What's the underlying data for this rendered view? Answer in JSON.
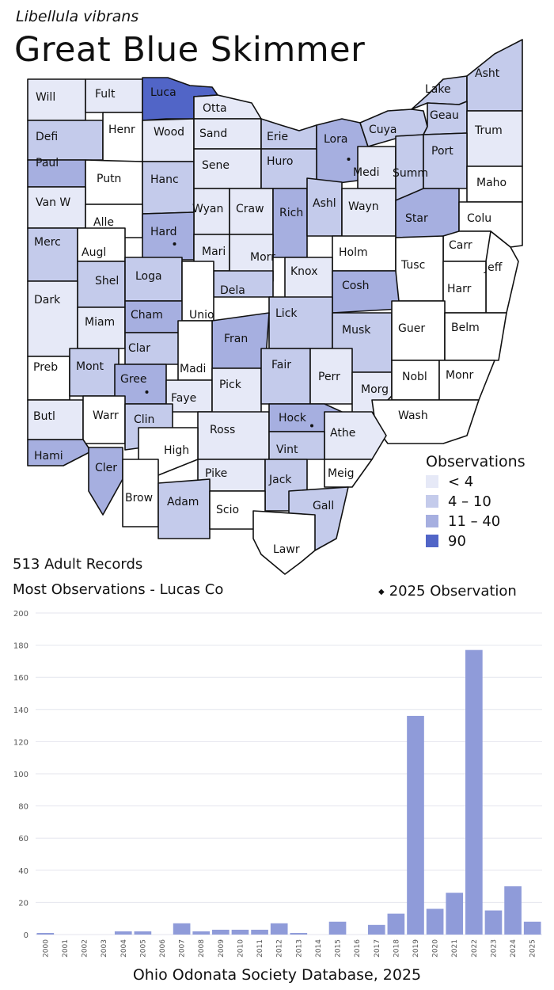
{
  "map": {
    "species": "Libellula vibrans",
    "common_name": "Great Blue Skimmer",
    "colors": {
      "none": "#ffffff",
      "lt4": "#e6e9f7",
      "4to10": "#c4cbeb",
      "11to40": "#a6afe0",
      "90": "#5165c7"
    },
    "counties": [
      {
        "id": "Will",
        "label": "Will",
        "cls": "lt4"
      },
      {
        "id": "Fult",
        "label": "Fult",
        "cls": "lt4"
      },
      {
        "id": "Luca",
        "label": "Luca",
        "cls": "90"
      },
      {
        "id": "Otta",
        "label": "Otta",
        "cls": "lt4"
      },
      {
        "id": "Defi",
        "label": "Defi",
        "cls": "4to10"
      },
      {
        "id": "Henr",
        "label": "Henr",
        "cls": "none"
      },
      {
        "id": "Wood",
        "label": "Wood",
        "cls": "lt4"
      },
      {
        "id": "Sand",
        "label": "Sand",
        "cls": "lt4"
      },
      {
        "id": "Erie",
        "label": "Erie",
        "cls": "4to10"
      },
      {
        "id": "Lora",
        "label": "Lora",
        "cls": "11to40",
        "dot": true
      },
      {
        "id": "Cuya",
        "label": "Cuya",
        "cls": "4to10"
      },
      {
        "id": "Lake",
        "label": "Lake",
        "cls": "4to10"
      },
      {
        "id": "Asht",
        "label": "Asht",
        "cls": "4to10"
      },
      {
        "id": "Geau",
        "label": "Geau",
        "cls": "4to10"
      },
      {
        "id": "Trum",
        "label": "Trum",
        "cls": "lt4"
      },
      {
        "id": "Paul",
        "label": "Paul",
        "cls": "11to40"
      },
      {
        "id": "Putn",
        "label": "Putn",
        "cls": "none"
      },
      {
        "id": "Hanc",
        "label": "Hanc",
        "cls": "4to10"
      },
      {
        "id": "Sene",
        "label": "Sene",
        "cls": "lt4"
      },
      {
        "id": "Huro",
        "label": "Huro",
        "cls": "4to10"
      },
      {
        "id": "Medi",
        "label": "Medi",
        "cls": "lt4"
      },
      {
        "id": "Summ",
        "label": "Summ",
        "cls": "4to10"
      },
      {
        "id": "Port",
        "label": "Port",
        "cls": "4to10"
      },
      {
        "id": "Maho",
        "label": "Maho",
        "cls": "none"
      },
      {
        "id": "VanW",
        "label": "Van W",
        "cls": "lt4"
      },
      {
        "id": "Alle",
        "label": "Alle",
        "cls": "none"
      },
      {
        "id": "Wyan",
        "label": "Wyan",
        "cls": "lt4"
      },
      {
        "id": "Craw",
        "label": "Craw",
        "cls": "lt4"
      },
      {
        "id": "Rich",
        "label": "Rich",
        "cls": "11to40"
      },
      {
        "id": "Ashl",
        "label": "Ashl",
        "cls": "4to10"
      },
      {
        "id": "Wayn",
        "label": "Wayn",
        "cls": "lt4"
      },
      {
        "id": "Star",
        "label": "Star",
        "cls": "11to40"
      },
      {
        "id": "Colu",
        "label": "Colu",
        "cls": "none"
      },
      {
        "id": "Merc",
        "label": "Merc",
        "cls": "4to10"
      },
      {
        "id": "Augl",
        "label": "Augl",
        "cls": "none"
      },
      {
        "id": "Hard",
        "label": "Hard",
        "cls": "11to40",
        "dot": true
      },
      {
        "id": "Mari",
        "label": "Mari",
        "cls": "lt4"
      },
      {
        "id": "Morr",
        "label": "Morr",
        "cls": "lt4"
      },
      {
        "id": "Holm",
        "label": "Holm",
        "cls": "none"
      },
      {
        "id": "Carr",
        "label": "Carr",
        "cls": "none"
      },
      {
        "id": "Tusc",
        "label": "Tusc",
        "cls": "none"
      },
      {
        "id": "Jeff",
        "label": "Jeff",
        "cls": "none"
      },
      {
        "id": "Shel",
        "label": "Shel",
        "cls": "4to10"
      },
      {
        "id": "Loga",
        "label": "Loga",
        "cls": "4to10"
      },
      {
        "id": "Knox",
        "label": "Knox",
        "cls": "lt4"
      },
      {
        "id": "Dela",
        "label": "Dela",
        "cls": "4to10"
      },
      {
        "id": "Cosh",
        "label": "Cosh",
        "cls": "11to40"
      },
      {
        "id": "Harr",
        "label": "Harr",
        "cls": "none"
      },
      {
        "id": "Dark",
        "label": "Dark",
        "cls": "lt4"
      },
      {
        "id": "Miam",
        "label": "Miam",
        "cls": "lt4"
      },
      {
        "id": "Cham",
        "label": "Cham",
        "cls": "11to40"
      },
      {
        "id": "Unio",
        "label": "Unio",
        "cls": "none"
      },
      {
        "id": "Lick",
        "label": "Lick",
        "cls": "4to10"
      },
      {
        "id": "Musk",
        "label": "Musk",
        "cls": "4to10"
      },
      {
        "id": "Guer",
        "label": "Guer",
        "cls": "none"
      },
      {
        "id": "Belm",
        "label": "Belm",
        "cls": "none"
      },
      {
        "id": "Clar",
        "label": "Clar",
        "cls": "4to10"
      },
      {
        "id": "Fran",
        "label": "Fran",
        "cls": "11to40"
      },
      {
        "id": "Madi",
        "label": "Madi",
        "cls": "none"
      },
      {
        "id": "Preb",
        "label": "Preb",
        "cls": "none"
      },
      {
        "id": "Mont",
        "label": "Mont",
        "cls": "4to10"
      },
      {
        "id": "Gree",
        "label": "Gree",
        "cls": "11to40",
        "dot": true
      },
      {
        "id": "Faye",
        "label": "Faye",
        "cls": "lt4"
      },
      {
        "id": "Pick",
        "label": "Pick",
        "cls": "lt4"
      },
      {
        "id": "Fair",
        "label": "Fair",
        "cls": "4to10"
      },
      {
        "id": "Perr",
        "label": "Perr",
        "cls": "lt4"
      },
      {
        "id": "Morg",
        "label": "Morg",
        "cls": "lt4"
      },
      {
        "id": "Nobl",
        "label": "Nobl",
        "cls": "none"
      },
      {
        "id": "Monr",
        "label": "Monr",
        "cls": "none"
      },
      {
        "id": "Wash",
        "label": "Wash",
        "cls": "none"
      },
      {
        "id": "Butl",
        "label": "Butl",
        "cls": "lt4"
      },
      {
        "id": "Warr",
        "label": "Warr",
        "cls": "none"
      },
      {
        "id": "Clin",
        "label": "Clin",
        "cls": "4to10"
      },
      {
        "id": "Ross",
        "label": "Ross",
        "cls": "lt4"
      },
      {
        "id": "Hock",
        "label": "Hock",
        "cls": "11to40",
        "dot": true
      },
      {
        "id": "Athe",
        "label": "Athe",
        "cls": "lt4"
      },
      {
        "id": "Hami",
        "label": "Hami",
        "cls": "11to40"
      },
      {
        "id": "Cler",
        "label": "Cler",
        "cls": "11to40"
      },
      {
        "id": "High",
        "label": "High",
        "cls": "none"
      },
      {
        "id": "Vint",
        "label": "Vint",
        "cls": "4to10"
      },
      {
        "id": "Meig",
        "label": "Meig",
        "cls": "none"
      },
      {
        "id": "Pike",
        "label": "Pike",
        "cls": "lt4"
      },
      {
        "id": "Jack",
        "label": "Jack",
        "cls": "4to10"
      },
      {
        "id": "Brow",
        "label": "Brow",
        "cls": "none"
      },
      {
        "id": "Adam",
        "label": "Adam",
        "cls": "4to10"
      },
      {
        "id": "Scio",
        "label": "Scio",
        "cls": "none"
      },
      {
        "id": "Gall",
        "label": "Gall",
        "cls": "4to10"
      },
      {
        "id": "Lawr",
        "label": "Lawr",
        "cls": "none"
      }
    ]
  },
  "legend": {
    "title": "Observations",
    "items": [
      {
        "label": "< 4",
        "color": "#e6e9f7"
      },
      {
        "label": "4 – 10",
        "color": "#c4cbeb"
      },
      {
        "label": "11 – 40",
        "color": "#a6afe0"
      },
      {
        "label": "90",
        "color": "#5165c7"
      }
    ]
  },
  "summary": {
    "records": "513 Adult Records",
    "most": "Most Observations - Lucas Co",
    "obs_2025": "2025  Observation"
  },
  "chart_data": {
    "type": "bar",
    "title": "",
    "xlabel": "",
    "ylabel": "",
    "ylim": [
      0,
      200
    ],
    "yticks": [
      0,
      20,
      40,
      60,
      80,
      100,
      120,
      140,
      160,
      180,
      200
    ],
    "bar_color": "#8f9bd9",
    "categories": [
      "2000",
      "2001",
      "2002",
      "2003",
      "2004",
      "2005",
      "2006",
      "2007",
      "2008",
      "2009",
      "2010",
      "2011",
      "2012",
      "2013",
      "2014",
      "2015",
      "2016",
      "2017",
      "2018",
      "2019",
      "2020",
      "2021",
      "2022",
      "2023",
      "2024",
      "2025"
    ],
    "values": [
      1,
      0,
      0,
      0,
      2,
      2,
      0,
      7,
      2,
      3,
      3,
      3,
      7,
      1,
      0,
      8,
      0,
      6,
      13,
      136,
      16,
      26,
      177,
      15,
      30,
      8
    ]
  },
  "footer": {
    "source": "Ohio Odonata Society Database, 2025"
  }
}
